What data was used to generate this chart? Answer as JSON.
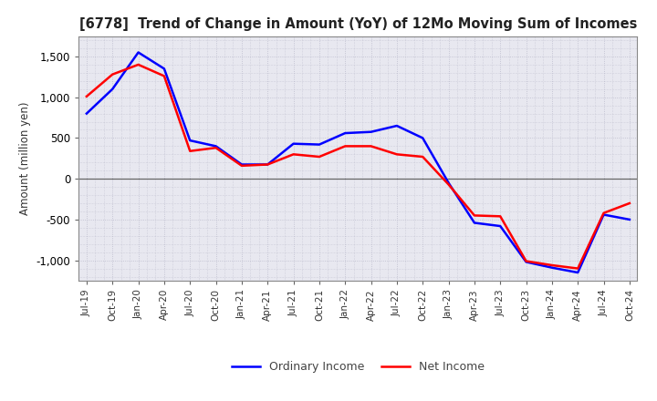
{
  "title": "[6778]  Trend of Change in Amount (YoY) of 12Mo Moving Sum of Incomes",
  "ylabel": "Amount (million yen)",
  "x_labels": [
    "Jul-19",
    "Oct-19",
    "Jan-20",
    "Apr-20",
    "Jul-20",
    "Oct-20",
    "Jan-21",
    "Apr-21",
    "Jul-21",
    "Oct-21",
    "Jan-22",
    "Apr-22",
    "Jul-22",
    "Oct-22",
    "Jan-23",
    "Apr-23",
    "Jul-23",
    "Oct-23",
    "Jan-24",
    "Apr-24",
    "Jul-24",
    "Oct-24"
  ],
  "ordinary_income": [
    800,
    1100,
    1550,
    1350,
    470,
    400,
    175,
    175,
    430,
    420,
    560,
    575,
    650,
    500,
    -50,
    -540,
    -580,
    -1020,
    -1090,
    -1150,
    -440,
    -500
  ],
  "net_income": [
    1010,
    1280,
    1400,
    1260,
    340,
    380,
    160,
    175,
    300,
    270,
    400,
    400,
    300,
    270,
    -70,
    -450,
    -460,
    -1010,
    -1060,
    -1100,
    -420,
    -300
  ],
  "ylim": [
    -1250,
    1750
  ],
  "yticks": [
    -1000,
    -500,
    0,
    500,
    1000,
    1500
  ],
  "line_color_ordinary": "#0000FF",
  "line_color_net": "#FF0000",
  "background_color": "#FFFFFF",
  "plot_bg_color": "#E8E8F0",
  "grid_color": "#BBBBCC",
  "legend_ordinary": "Ordinary Income",
  "legend_net": "Net Income"
}
